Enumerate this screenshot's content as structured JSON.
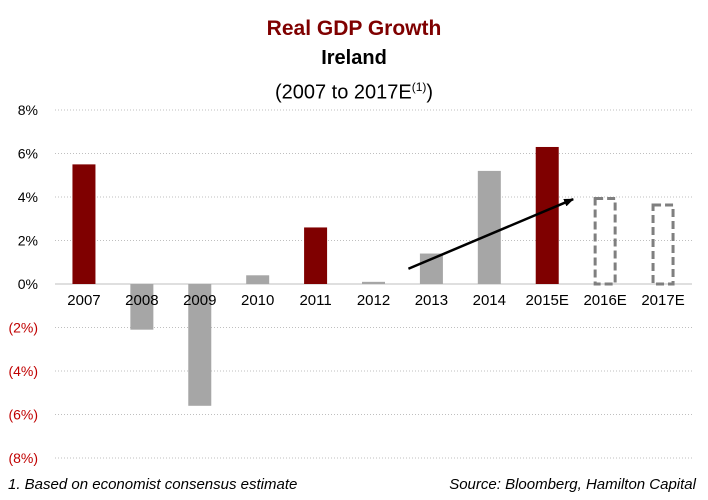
{
  "chart_data": {
    "type": "bar",
    "title": "Real GDP Growth",
    "subtitle": "Ireland",
    "subtitle2_main": "(2007 to 2017E",
    "subtitle2_sup": "(1)",
    "subtitle2_end": ")",
    "categories": [
      "2007",
      "2008",
      "2009",
      "2010",
      "2011",
      "2012",
      "2013",
      "2014",
      "2015E",
      "2016E",
      "2017E"
    ],
    "values": [
      5.5,
      -2.1,
      -5.6,
      0.4,
      2.6,
      0.1,
      1.4,
      5.2,
      6.3,
      4.0,
      3.7
    ],
    "bar_styles": [
      "highlight",
      "normal",
      "normal",
      "normal",
      "highlight",
      "normal",
      "normal",
      "normal",
      "highlight",
      "estimate",
      "estimate"
    ],
    "ylim": [
      -8,
      8
    ],
    "yticks": [
      8,
      6,
      4,
      2,
      0,
      -2,
      -4,
      -6,
      -8
    ],
    "ytick_labels": [
      "8%",
      "6%",
      "4%",
      "2%",
      "0%",
      "(2%)",
      "(4%)",
      "(6%)",
      "(8%)"
    ],
    "grid": true,
    "xlabel": "",
    "ylabel": "",
    "arrow": {
      "from": {
        "x": "2013",
        "y": 0.7
      },
      "to": {
        "x": "2016E",
        "y": 3.9
      }
    }
  },
  "colors": {
    "title": "#7f0000",
    "highlight": "#7f0000",
    "normal": "#a6a6a6",
    "estimate_border": "#7f7f7f",
    "negative_label": "#c00000",
    "grid": "#bfbfbf"
  },
  "footnote": "1. Based on economist consensus estimate",
  "source": "Source: Bloomberg, Hamilton Capital"
}
